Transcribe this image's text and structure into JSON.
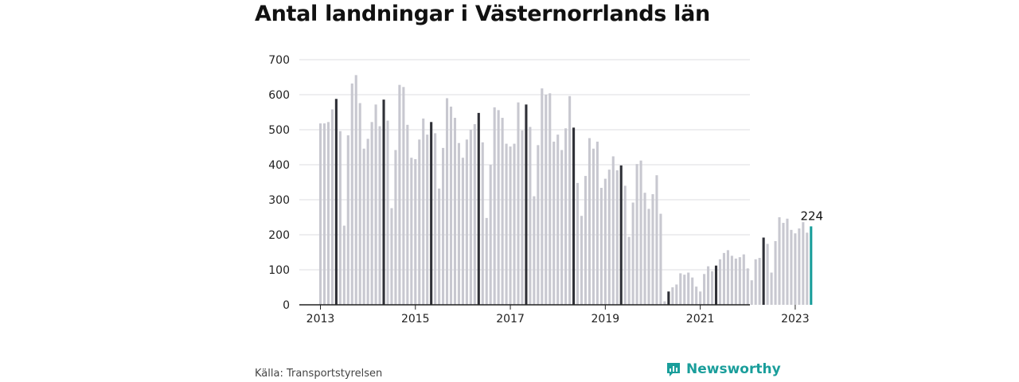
{
  "title": "Antal landningar i Västernorrlands län",
  "source": "Källa: Transportstyrelsen",
  "brand": {
    "name": "Newsworthy",
    "icon": "bar-chart-speech-bubble-icon"
  },
  "colors": {
    "bar": "#c8c8d0",
    "highlight": "#2f3037",
    "last": "#1a9e9b",
    "grid": "#dcdce0",
    "axis": "#222222"
  },
  "chart_data": {
    "type": "bar",
    "title": "Antal landningar i Västernorrlands län",
    "xlabel": "",
    "ylabel": "",
    "ylim": [
      0,
      700
    ],
    "yticks": [
      0,
      100,
      200,
      300,
      400,
      500,
      600,
      700
    ],
    "grid": true,
    "xtick_labels": [
      "2013",
      "2015",
      "2017",
      "2019",
      "2021",
      "2023"
    ],
    "start": "2013-01",
    "end": "2023-05",
    "highlighted_month": "May",
    "categories": [
      "2013-01",
      "2013-02",
      "2013-03",
      "2013-04",
      "2013-05",
      "2013-06",
      "2013-07",
      "2013-08",
      "2013-09",
      "2013-10",
      "2013-11",
      "2013-12",
      "2014-01",
      "2014-02",
      "2014-03",
      "2014-04",
      "2014-05",
      "2014-06",
      "2014-07",
      "2014-08",
      "2014-09",
      "2014-10",
      "2014-11",
      "2014-12",
      "2015-01",
      "2015-02",
      "2015-03",
      "2015-04",
      "2015-05",
      "2015-06",
      "2015-07",
      "2015-08",
      "2015-09",
      "2015-10",
      "2015-11",
      "2015-12",
      "2016-01",
      "2016-02",
      "2016-03",
      "2016-04",
      "2016-05",
      "2016-06",
      "2016-07",
      "2016-08",
      "2016-09",
      "2016-10",
      "2016-11",
      "2016-12",
      "2017-01",
      "2017-02",
      "2017-03",
      "2017-04",
      "2017-05",
      "2017-06",
      "2017-07",
      "2017-08",
      "2017-09",
      "2017-10",
      "2017-11",
      "2017-12",
      "2018-01",
      "2018-02",
      "2018-03",
      "2018-04",
      "2018-05",
      "2018-06",
      "2018-07",
      "2018-08",
      "2018-09",
      "2018-10",
      "2018-11",
      "2018-12",
      "2019-01",
      "2019-02",
      "2019-03",
      "2019-04",
      "2019-05",
      "2019-06",
      "2019-07",
      "2019-08",
      "2019-09",
      "2019-10",
      "2019-11",
      "2019-12",
      "2020-01",
      "2020-02",
      "2020-03",
      "2020-04",
      "2020-05",
      "2020-06",
      "2020-07",
      "2020-08",
      "2020-09",
      "2020-10",
      "2020-11",
      "2020-12",
      "2021-01",
      "2021-02",
      "2021-03",
      "2021-04",
      "2021-05",
      "2021-06",
      "2021-07",
      "2021-08",
      "2021-09",
      "2021-10",
      "2021-11",
      "2021-12",
      "2022-01",
      "2022-02",
      "2022-03",
      "2022-04",
      "2022-05",
      "2022-06",
      "2022-07",
      "2022-08",
      "2022-09",
      "2022-10",
      "2022-11",
      "2022-12",
      "2023-01",
      "2023-02",
      "2023-03",
      "2023-04",
      "2023-05"
    ],
    "values": [
      518,
      518,
      522,
      558,
      588,
      496,
      226,
      484,
      632,
      656,
      576,
      446,
      474,
      522,
      572,
      510,
      586,
      526,
      276,
      442,
      628,
      622,
      514,
      420,
      416,
      472,
      532,
      486,
      522,
      490,
      332,
      448,
      590,
      566,
      534,
      462,
      420,
      472,
      500,
      516,
      548,
      464,
      248,
      400,
      564,
      556,
      534,
      460,
      452,
      460,
      578,
      498,
      572,
      508,
      310,
      456,
      618,
      600,
      604,
      466,
      486,
      442,
      504,
      596,
      506,
      348,
      254,
      368,
      476,
      446,
      466,
      334,
      360,
      386,
      424,
      384,
      398,
      340,
      194,
      292,
      402,
      412,
      320,
      274,
      316,
      370,
      260,
      10,
      38,
      50,
      58,
      90,
      86,
      92,
      78,
      52,
      38,
      88,
      110,
      96,
      112,
      130,
      148,
      156,
      140,
      132,
      136,
      144,
      104,
      70,
      130,
      134,
      192,
      174,
      92,
      182,
      250,
      234,
      246,
      214,
      204,
      218,
      236,
      206,
      224
    ],
    "last_label": "224"
  }
}
